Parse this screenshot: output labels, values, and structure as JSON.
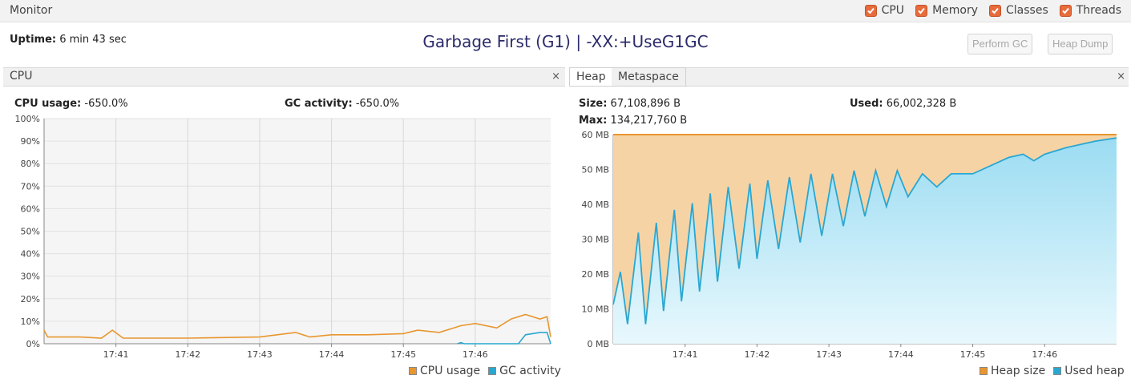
{
  "topbar": {
    "title": "Monitor",
    "checkboxes": [
      {
        "label": "CPU",
        "checked": true
      },
      {
        "label": "Memory",
        "checked": true
      },
      {
        "label": "Classes",
        "checked": true
      },
      {
        "label": "Threads",
        "checked": true
      }
    ]
  },
  "header": {
    "uptime_label": "Uptime:",
    "uptime_value": "6 min 43 sec",
    "gc_title": "Garbage First (G1) | -XX:+UseG1GC",
    "perform_gc": "Perform GC",
    "heap_dump": "Heap Dump"
  },
  "cpu_panel": {
    "tab": "CPU",
    "cpu_usage_label": "CPU usage:",
    "cpu_usage_value": "-650.0%",
    "gc_activity_label": "GC activity:",
    "gc_activity_value": "-650.0%",
    "legend": [
      "CPU usage",
      "GC activity"
    ]
  },
  "heap_panel": {
    "tabs": [
      "Heap",
      "Metaspace"
    ],
    "size_label": "Size:",
    "size_value": "67,108,896 B",
    "used_label": "Used:",
    "used_value": "66,002,328 B",
    "max_label": "Max:",
    "max_value": "134,217,760 B",
    "legend": [
      "Heap size",
      "Used heap"
    ]
  },
  "close_glyph": "×",
  "colors": {
    "orange": "#e8962f",
    "blue": "#2aa7d1",
    "heap_fill": "#f6d3a5",
    "used_fill_top": "#9bdcf2",
    "used_fill_bottom": "#e8f8fd",
    "plot_bg": "#f5f5f5"
  },
  "chart_data": [
    {
      "type": "line",
      "name": "cpu",
      "y_unit": "%",
      "ylim": [
        0,
        100
      ],
      "yticks": [
        "0%",
        "10%",
        "20%",
        "30%",
        "40%",
        "50%",
        "60%",
        "70%",
        "80%",
        "90%",
        "100%"
      ],
      "xticks": [
        "17:41",
        "17:42",
        "17:43",
        "17:44",
        "17:45",
        "17:46"
      ],
      "grid": true,
      "legend_position": "bottom-right",
      "series": [
        {
          "name": "CPU usage",
          "color": "#e8962f",
          "points": [
            [
              0,
              6
            ],
            [
              0.05,
              3
            ],
            [
              0.5,
              3
            ],
            [
              0.8,
              2.5
            ],
            [
              0.95,
              6
            ],
            [
              1.1,
              2.5
            ],
            [
              2,
              2.5
            ],
            [
              3,
              3
            ],
            [
              3.5,
              5
            ],
            [
              3.7,
              3
            ],
            [
              4,
              4
            ],
            [
              4.5,
              4
            ],
            [
              5,
              4.5
            ],
            [
              5.2,
              6
            ],
            [
              5.5,
              5
            ],
            [
              5.8,
              8
            ],
            [
              6,
              9
            ],
            [
              6.3,
              7
            ],
            [
              6.5,
              11
            ],
            [
              6.7,
              13
            ],
            [
              6.9,
              11
            ],
            [
              7.0,
              12
            ],
            [
              7.05,
              3
            ]
          ]
        },
        {
          "name": "GC activity",
          "color": "#2aa7d1",
          "points": [
            [
              5.75,
              0
            ],
            [
              5.8,
              0.5
            ],
            [
              5.85,
              0
            ],
            [
              6.6,
              0
            ],
            [
              6.7,
              4
            ],
            [
              6.9,
              5
            ],
            [
              7.0,
              5
            ],
            [
              7.05,
              0
            ]
          ]
        }
      ]
    },
    {
      "type": "area",
      "name": "heap",
      "y_unit": "MB",
      "ylim": [
        0,
        64
      ],
      "yticks": [
        "0 MB",
        "10 MB",
        "20 MB",
        "30 MB",
        "40 MB",
        "50 MB",
        "60 MB"
      ],
      "xticks": [
        "17:41",
        "17:42",
        "17:43",
        "17:44",
        "17:45",
        "17:46"
      ],
      "grid": true,
      "legend_position": "bottom-right",
      "series": [
        {
          "name": "Heap size",
          "color": "#e8962f",
          "values": [
            64,
            64
          ]
        },
        {
          "name": "Used heap",
          "color": "#2aa7d1",
          "points": [
            [
              0,
              12
            ],
            [
              0.1,
              22
            ],
            [
              0.2,
              6
            ],
            [
              0.35,
              34
            ],
            [
              0.45,
              6
            ],
            [
              0.6,
              37
            ],
            [
              0.7,
              10
            ],
            [
              0.85,
              41
            ],
            [
              0.95,
              13
            ],
            [
              1.1,
              43
            ],
            [
              1.2,
              16
            ],
            [
              1.35,
              46
            ],
            [
              1.45,
              19
            ],
            [
              1.6,
              48
            ],
            [
              1.75,
              23
            ],
            [
              1.9,
              49
            ],
            [
              2.0,
              26
            ],
            [
              2.15,
              50
            ],
            [
              2.3,
              29
            ],
            [
              2.45,
              51
            ],
            [
              2.6,
              31
            ],
            [
              2.75,
              52
            ],
            [
              2.9,
              33
            ],
            [
              3.05,
              52
            ],
            [
              3.2,
              36
            ],
            [
              3.35,
              53
            ],
            [
              3.5,
              39
            ],
            [
              3.65,
              53
            ],
            [
              3.8,
              42
            ],
            [
              3.95,
              53
            ],
            [
              4.1,
              45
            ],
            [
              4.3,
              52
            ],
            [
              4.5,
              48
            ],
            [
              4.7,
              52
            ],
            [
              5.0,
              52
            ],
            [
              5.3,
              55
            ],
            [
              5.5,
              57
            ],
            [
              5.7,
              58
            ],
            [
              5.85,
              56
            ],
            [
              6.0,
              58
            ],
            [
              6.3,
              60
            ],
            [
              6.7,
              62
            ],
            [
              7.0,
              63
            ]
          ]
        }
      ]
    }
  ]
}
